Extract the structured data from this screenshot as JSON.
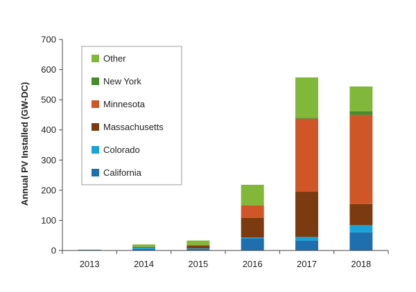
{
  "chart_data": {
    "type": "bar",
    "stacked": true,
    "categories": [
      "2013",
      "2014",
      "2015",
      "2016",
      "2017",
      "2018"
    ],
    "ylabel": "Annual PV Installed (GW-DC)",
    "xlabel": "",
    "ylim": [
      0,
      700
    ],
    "yticks": [
      0,
      100,
      200,
      300,
      400,
      500,
      600,
      700
    ],
    "grid": false,
    "legend_position": "top-left",
    "series": [
      {
        "name": "California",
        "color": "#1F6FAE",
        "values": [
          2,
          5,
          5,
          40,
          33,
          60
        ]
      },
      {
        "name": "Colorado",
        "color": "#19A3D9",
        "values": [
          0,
          5,
          2,
          3,
          12,
          24
        ]
      },
      {
        "name": "Massachusetts",
        "color": "#7B3A10",
        "values": [
          0,
          2,
          9,
          65,
          150,
          70
        ]
      },
      {
        "name": "Minnesota",
        "color": "#D05628",
        "values": [
          0,
          0,
          2,
          42,
          242,
          296
        ]
      },
      {
        "name": "New York",
        "color": "#4A8A2E",
        "values": [
          0,
          0,
          0,
          0,
          3,
          12
        ]
      },
      {
        "name": "Other",
        "color": "#82B83A",
        "values": [
          1,
          8,
          15,
          68,
          134,
          82
        ]
      }
    ]
  }
}
